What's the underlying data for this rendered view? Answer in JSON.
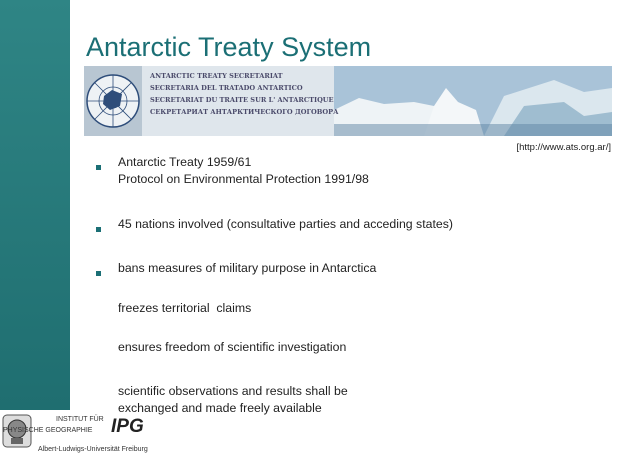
{
  "slide": {
    "title": "Antarctic Treaty System",
    "banner": [
      "ANTARCTIC TREATY SECRETARIAT",
      "SECRETARIA DEL TRATADO ANTARTICO",
      "SECRETARIAT DU TRAITE SUR L' ANTARCTIQUE",
      "СЕКРЕТАРИАТ АНТАРКТИЧЕСКОГО ДОГОВОРА"
    ],
    "source": "[http://www.ats.org.ar/]",
    "items": [
      [
        "Antarctic Treaty 1959/61",
        "Protocol on Environmental Protection 1991/98"
      ],
      [
        "45 nations involved (consultative parties and acceding states)"
      ],
      [
        "bans measures of military purpose in Antarctica"
      ],
      [
        "freezes territorial  claims"
      ],
      [
        "ensures freedom of scientific investigation"
      ],
      [
        "scientific observations and results shall be",
        "exchanged and made freely available"
      ]
    ],
    "logo": {
      "line1": "INSTITUT FÜR",
      "line2": "PHYSISCHE GEOGRAPHIE",
      "acronym": "IPG",
      "university": "Albert-Ludwigs-Universität Freiburg"
    }
  }
}
